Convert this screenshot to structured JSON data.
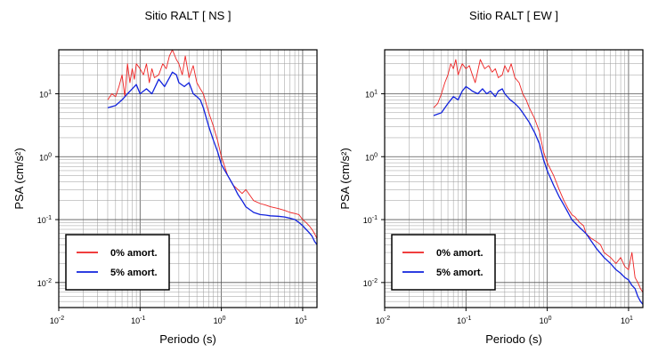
{
  "chart_data": [
    {
      "type": "line",
      "title": "Sitio RALT [ NS ]",
      "xlabel": "Periodo (s)",
      "ylabel": "PSA (cm/s²)",
      "xscale": "log",
      "yscale": "log",
      "xlim": [
        0.01,
        15
      ],
      "ylim": [
        0.004,
        50
      ],
      "grid": true,
      "legend_position": "bottom-left",
      "x_ticks": [
        {
          "value": 0.01,
          "base": "10",
          "exp": "-2"
        },
        {
          "value": 0.1,
          "base": "10",
          "exp": "-1"
        },
        {
          "value": 1,
          "base": "10",
          "exp": "0"
        },
        {
          "value": 10,
          "base": "10",
          "exp": "1"
        }
      ],
      "y_ticks": [
        {
          "value": 0.01,
          "base": "10",
          "exp": "-2"
        },
        {
          "value": 0.1,
          "base": "10",
          "exp": "-1"
        },
        {
          "value": 1,
          "base": "10",
          "exp": "0"
        },
        {
          "value": 10,
          "base": "10",
          "exp": "1"
        }
      ],
      "series": [
        {
          "name": "0% amort.",
          "color": "#ee2222",
          "x": [
            0.04,
            0.045,
            0.05,
            0.055,
            0.06,
            0.065,
            0.07,
            0.075,
            0.08,
            0.085,
            0.09,
            0.1,
            0.11,
            0.12,
            0.13,
            0.14,
            0.15,
            0.17,
            0.19,
            0.21,
            0.23,
            0.25,
            0.28,
            0.3,
            0.33,
            0.36,
            0.4,
            0.45,
            0.5,
            0.55,
            0.6,
            0.7,
            0.8,
            0.9,
            1.0,
            1.2,
            1.4,
            1.6,
            1.8,
            2.0,
            2.5,
            3.0,
            3.5,
            4.0,
            5.0,
            6.0,
            7.0,
            8.0,
            9.0,
            10,
            11,
            12,
            13,
            14,
            15
          ],
          "y": [
            8,
            10,
            9,
            13,
            20,
            9,
            30,
            15,
            25,
            17,
            30,
            25,
            20,
            30,
            15,
            25,
            18,
            20,
            30,
            25,
            40,
            50,
            35,
            30,
            20,
            40,
            18,
            28,
            15,
            12,
            10,
            5,
            3,
            1.8,
            1.0,
            0.5,
            0.35,
            0.3,
            0.26,
            0.3,
            0.2,
            0.18,
            0.17,
            0.16,
            0.15,
            0.14,
            0.13,
            0.125,
            0.12,
            0.1,
            0.09,
            0.08,
            0.07,
            0.06,
            0.05
          ]
        },
        {
          "name": "5% amort.",
          "color": "#1122dd",
          "x": [
            0.04,
            0.05,
            0.06,
            0.07,
            0.08,
            0.09,
            0.1,
            0.12,
            0.14,
            0.17,
            0.2,
            0.23,
            0.25,
            0.28,
            0.3,
            0.35,
            0.4,
            0.45,
            0.5,
            0.55,
            0.6,
            0.7,
            0.8,
            0.9,
            1.0,
            1.2,
            1.4,
            1.6,
            1.8,
            2.0,
            2.5,
            3.0,
            3.5,
            4.0,
            5.0,
            6.0,
            7.0,
            8.0,
            9.0,
            10,
            11,
            12,
            13,
            14,
            15
          ],
          "y": [
            6,
            6.5,
            8,
            10,
            12,
            14,
            10,
            12,
            10,
            17,
            13,
            18,
            22,
            20,
            15,
            13,
            15,
            10,
            9,
            8,
            6,
            3,
            1.8,
            1.2,
            0.75,
            0.5,
            0.35,
            0.25,
            0.2,
            0.16,
            0.13,
            0.12,
            0.118,
            0.115,
            0.113,
            0.11,
            0.105,
            0.1,
            0.09,
            0.08,
            0.07,
            0.062,
            0.055,
            0.045,
            0.04
          ]
        }
      ]
    },
    {
      "type": "line",
      "title": "Sitio RALT [ EW ]",
      "xlabel": "Periodo (s)",
      "ylabel": "PSA (cm/s²)",
      "xscale": "log",
      "yscale": "log",
      "xlim": [
        0.01,
        15
      ],
      "ylim": [
        0.004,
        50
      ],
      "grid": true,
      "legend_position": "bottom-left",
      "x_ticks": [
        {
          "value": 0.01,
          "base": "10",
          "exp": "-2"
        },
        {
          "value": 0.1,
          "base": "10",
          "exp": "-1"
        },
        {
          "value": 1,
          "base": "10",
          "exp": "0"
        },
        {
          "value": 10,
          "base": "10",
          "exp": "1"
        }
      ],
      "y_ticks": [
        {
          "value": 0.01,
          "base": "10",
          "exp": "-2"
        },
        {
          "value": 0.1,
          "base": "10",
          "exp": "-1"
        },
        {
          "value": 1,
          "base": "10",
          "exp": "0"
        },
        {
          "value": 10,
          "base": "10",
          "exp": "1"
        }
      ],
      "series": [
        {
          "name": "0% amort.",
          "color": "#ee2222",
          "x": [
            0.04,
            0.045,
            0.05,
            0.055,
            0.06,
            0.065,
            0.07,
            0.075,
            0.08,
            0.09,
            0.1,
            0.11,
            0.12,
            0.13,
            0.15,
            0.17,
            0.19,
            0.21,
            0.23,
            0.25,
            0.28,
            0.3,
            0.33,
            0.36,
            0.4,
            0.45,
            0.5,
            0.55,
            0.6,
            0.7,
            0.8,
            0.9,
            1.0,
            1.2,
            1.4,
            1.6,
            1.8,
            2.0,
            2.2,
            2.5,
            2.8,
            3.0,
            3.5,
            4.0,
            4.5,
            5.0,
            6.0,
            7.0,
            8.0,
            9.0,
            10,
            11,
            12,
            13,
            14,
            15
          ],
          "y": [
            6,
            7,
            10,
            15,
            20,
            30,
            25,
            35,
            20,
            30,
            25,
            28,
            20,
            15,
            35,
            25,
            28,
            22,
            25,
            18,
            20,
            28,
            22,
            30,
            18,
            15,
            10,
            8,
            6,
            4,
            2.5,
            1.2,
            0.8,
            0.5,
            0.3,
            0.2,
            0.15,
            0.12,
            0.11,
            0.09,
            0.08,
            0.06,
            0.05,
            0.045,
            0.04,
            0.03,
            0.025,
            0.02,
            0.025,
            0.018,
            0.016,
            0.03,
            0.012,
            0.01,
            0.008,
            0.007
          ]
        },
        {
          "name": "5% amort.",
          "color": "#1122dd",
          "x": [
            0.04,
            0.05,
            0.06,
            0.07,
            0.08,
            0.09,
            0.1,
            0.11,
            0.12,
            0.14,
            0.16,
            0.18,
            0.2,
            0.23,
            0.25,
            0.28,
            0.3,
            0.35,
            0.4,
            0.45,
            0.5,
            0.6,
            0.7,
            0.8,
            0.9,
            1.0,
            1.2,
            1.4,
            1.6,
            1.8,
            2.0,
            2.5,
            3.0,
            3.5,
            4.0,
            5.0,
            6.0,
            7.0,
            8.0,
            9.0,
            10,
            11,
            12,
            13,
            14,
            15
          ],
          "y": [
            4.5,
            5,
            7,
            9,
            8,
            11,
            13,
            12,
            11,
            10,
            12,
            10,
            11,
            9,
            11,
            12,
            10,
            8,
            7,
            6,
            5,
            3.5,
            2.4,
            1.6,
            0.9,
            0.6,
            0.35,
            0.23,
            0.17,
            0.13,
            0.1,
            0.075,
            0.06,
            0.045,
            0.035,
            0.025,
            0.02,
            0.016,
            0.014,
            0.012,
            0.011,
            0.009,
            0.008,
            0.006,
            0.005,
            0.0045
          ]
        }
      ]
    }
  ]
}
